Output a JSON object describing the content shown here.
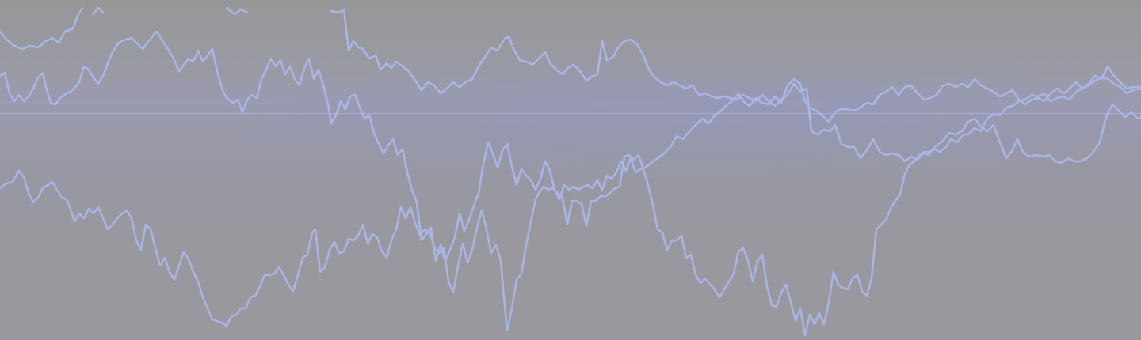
{
  "background": {
    "base_color": "#989898",
    "glow_color": "#9a9ab0"
  },
  "waves": [
    {
      "id": "wave-a",
      "color": "#aab6e8",
      "opacity": 0.95
    },
    {
      "id": "wave-b",
      "color": "#aab6e8",
      "opacity": 0.95
    },
    {
      "id": "wave-c",
      "color": "#a9b5e6",
      "opacity": 0.95
    },
    {
      "id": "wave-d",
      "color": "#a9b5e6",
      "opacity": 0.9
    }
  ]
}
